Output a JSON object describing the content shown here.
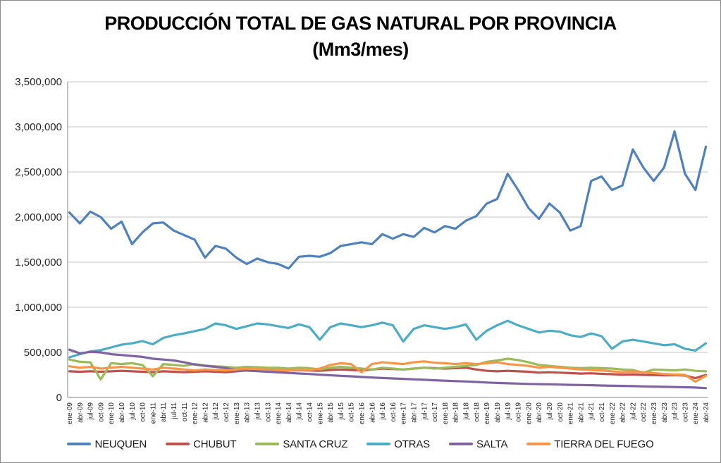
{
  "title": {
    "line1": "PRODUCCIÓN TOTAL DE GAS NATURAL POR PROVINCIA",
    "line2": "(Mm3/mes)"
  },
  "chart_data": {
    "type": "line",
    "title": "PRODUCCIÓN TOTAL DE GAS NATURAL POR PROVINCIA (Mm3/mes)",
    "ylabel": "",
    "xlabel": "",
    "unit": "Mm3/mes",
    "ylim": [
      0,
      3500000
    ],
    "grid": true,
    "legend_position": "bottom",
    "months_total": 184,
    "label_step_months": 3,
    "y_ticks": [
      0,
      500000,
      1000000,
      1500000,
      2000000,
      2500000,
      3000000,
      3500000
    ],
    "y_tick_labels": [
      "0",
      "500,000",
      "1,000,000",
      "1,500,000",
      "2,000,000",
      "2,500,000",
      "3,000,000",
      "3,500,000"
    ],
    "x_tick_labels": [
      "ene-09",
      "abr-09",
      "jul-09",
      "oct-09",
      "ene-10",
      "abr-10",
      "jul-10",
      "oct-10",
      "ene-11",
      "abr-11",
      "jul-11",
      "oct-11",
      "ene-12",
      "abr-12",
      "jul-12",
      "oct-12",
      "ene-13",
      "abr-13",
      "jul-13",
      "oct-13",
      "ene-14",
      "abr-14",
      "jul-14",
      "oct-14",
      "ene-15",
      "abr-15",
      "jul-15",
      "oct-15",
      "ene-16",
      "abr-16",
      "jul-16",
      "oct-16",
      "ene-17",
      "abr-17",
      "jul-17",
      "oct-17",
      "ene-18",
      "abr-18",
      "jul-18",
      "oct-18",
      "ene-19",
      "abr-19",
      "jul-19",
      "oct-19",
      "ene-20",
      "abr-20",
      "jul-20",
      "oct-20",
      "ene-21",
      "abr-21",
      "jul-21",
      "oct-21",
      "ene-22",
      "abr-22",
      "jul-22",
      "oct-22",
      "ene-23",
      "abr-23",
      "jul-23",
      "oct-23",
      "ene-24",
      "abr-24"
    ],
    "style": {
      "grid_color": "#c6c6c6",
      "axis_color": "#808080",
      "tick_text_color": "#262626",
      "background": "#ffffff",
      "line_width": 3.2
    },
    "series": [
      {
        "name": "NEUQUEN",
        "color": "#4F81BD",
        "values": [
          2050000,
          1930000,
          2060000,
          2000000,
          1870000,
          1950000,
          1700000,
          1830000,
          1930000,
          1940000,
          1850000,
          1800000,
          1750000,
          1550000,
          1680000,
          1650000,
          1550000,
          1480000,
          1540000,
          1500000,
          1480000,
          1430000,
          1560000,
          1570000,
          1560000,
          1600000,
          1680000,
          1700000,
          1720000,
          1700000,
          1810000,
          1760000,
          1810000,
          1780000,
          1880000,
          1830000,
          1900000,
          1870000,
          1960000,
          2010000,
          2150000,
          2200000,
          2480000,
          2300000,
          2100000,
          1980000,
          2150000,
          2050000,
          1850000,
          1900000,
          2400000,
          2450000,
          2300000,
          2350000,
          2750000,
          2550000,
          2400000,
          2550000,
          2950000,
          2480000,
          2300000,
          2780000
        ]
      },
      {
        "name": "CHUBUT",
        "color": "#C0504D",
        "values": [
          290000,
          285000,
          290000,
          285000,
          290000,
          295000,
          290000,
          285000,
          280000,
          290000,
          285000,
          280000,
          285000,
          290000,
          285000,
          280000,
          290000,
          300000,
          295000,
          290000,
          295000,
          300000,
          305000,
          300000,
          295000,
          305000,
          310000,
          305000,
          300000,
          310000,
          320000,
          315000,
          310000,
          320000,
          330000,
          325000,
          320000,
          325000,
          330000,
          310000,
          295000,
          290000,
          295000,
          290000,
          285000,
          275000,
          280000,
          275000,
          270000,
          265000,
          268000,
          262000,
          258000,
          252000,
          255000,
          250000,
          248000,
          245000,
          247000,
          243000,
          215000,
          250000
        ]
      },
      {
        "name": "SANTA CRUZ",
        "color": "#9BBB59",
        "values": [
          420000,
          395000,
          390000,
          200000,
          380000,
          370000,
          380000,
          360000,
          235000,
          370000,
          360000,
          350000,
          370000,
          355000,
          345000,
          340000,
          330000,
          340000,
          335000,
          330000,
          330000,
          320000,
          330000,
          325000,
          310000,
          330000,
          340000,
          330000,
          320000,
          310000,
          330000,
          320000,
          310000,
          320000,
          330000,
          320000,
          330000,
          340000,
          350000,
          360000,
          395000,
          410000,
          430000,
          415000,
          390000,
          360000,
          350000,
          340000,
          330000,
          325000,
          330000,
          325000,
          320000,
          310000,
          305000,
          275000,
          310000,
          305000,
          300000,
          310000,
          295000,
          290000
        ]
      },
      {
        "name": "OTRAS",
        "color": "#4BACC6",
        "values": [
          445000,
          480000,
          510000,
          525000,
          555000,
          585000,
          600000,
          625000,
          590000,
          660000,
          690000,
          710000,
          735000,
          760000,
          820000,
          800000,
          760000,
          790000,
          820000,
          810000,
          790000,
          770000,
          810000,
          780000,
          640000,
          780000,
          820000,
          800000,
          780000,
          800000,
          830000,
          800000,
          620000,
          760000,
          800000,
          780000,
          760000,
          780000,
          810000,
          640000,
          740000,
          800000,
          850000,
          800000,
          760000,
          720000,
          740000,
          730000,
          690000,
          670000,
          710000,
          680000,
          540000,
          620000,
          640000,
          620000,
          600000,
          580000,
          590000,
          540000,
          520000,
          600000
        ]
      },
      {
        "name": "SALTA",
        "color": "#8064A2",
        "values": [
          530000,
          490000,
          505000,
          500000,
          480000,
          470000,
          460000,
          450000,
          430000,
          420000,
          410000,
          390000,
          365000,
          350000,
          340000,
          325000,
          305000,
          298000,
          292000,
          285000,
          278000,
          272000,
          266000,
          260000,
          252000,
          246000,
          240000,
          234000,
          227000,
          221000,
          216000,
          211000,
          206000,
          201000,
          196000,
          191000,
          186000,
          181000,
          177000,
          172000,
          166000,
          161000,
          157000,
          154000,
          150000,
          148000,
          146000,
          143000,
          140000,
          138000,
          136000,
          133000,
          130000,
          128000,
          126000,
          123000,
          120000,
          118000,
          116000,
          113000,
          110000,
          103000
        ]
      },
      {
        "name": "TIERRA DEL FUEGO",
        "color": "#F79646",
        "values": [
          345000,
          330000,
          340000,
          320000,
          330000,
          340000,
          330000,
          320000,
          310000,
          330000,
          320000,
          310000,
          300000,
          310000,
          305000,
          300000,
          310000,
          320000,
          315000,
          310000,
          305000,
          300000,
          310000,
          305000,
          320000,
          360000,
          380000,
          370000,
          280000,
          370000,
          390000,
          380000,
          370000,
          390000,
          400000,
          385000,
          380000,
          370000,
          380000,
          370000,
          380000,
          390000,
          370000,
          360000,
          350000,
          330000,
          340000,
          330000,
          320000,
          310000,
          305000,
          300000,
          290000,
          280000,
          285000,
          280000,
          270000,
          260000,
          255000,
          250000,
          175000,
          240000
        ]
      }
    ]
  }
}
